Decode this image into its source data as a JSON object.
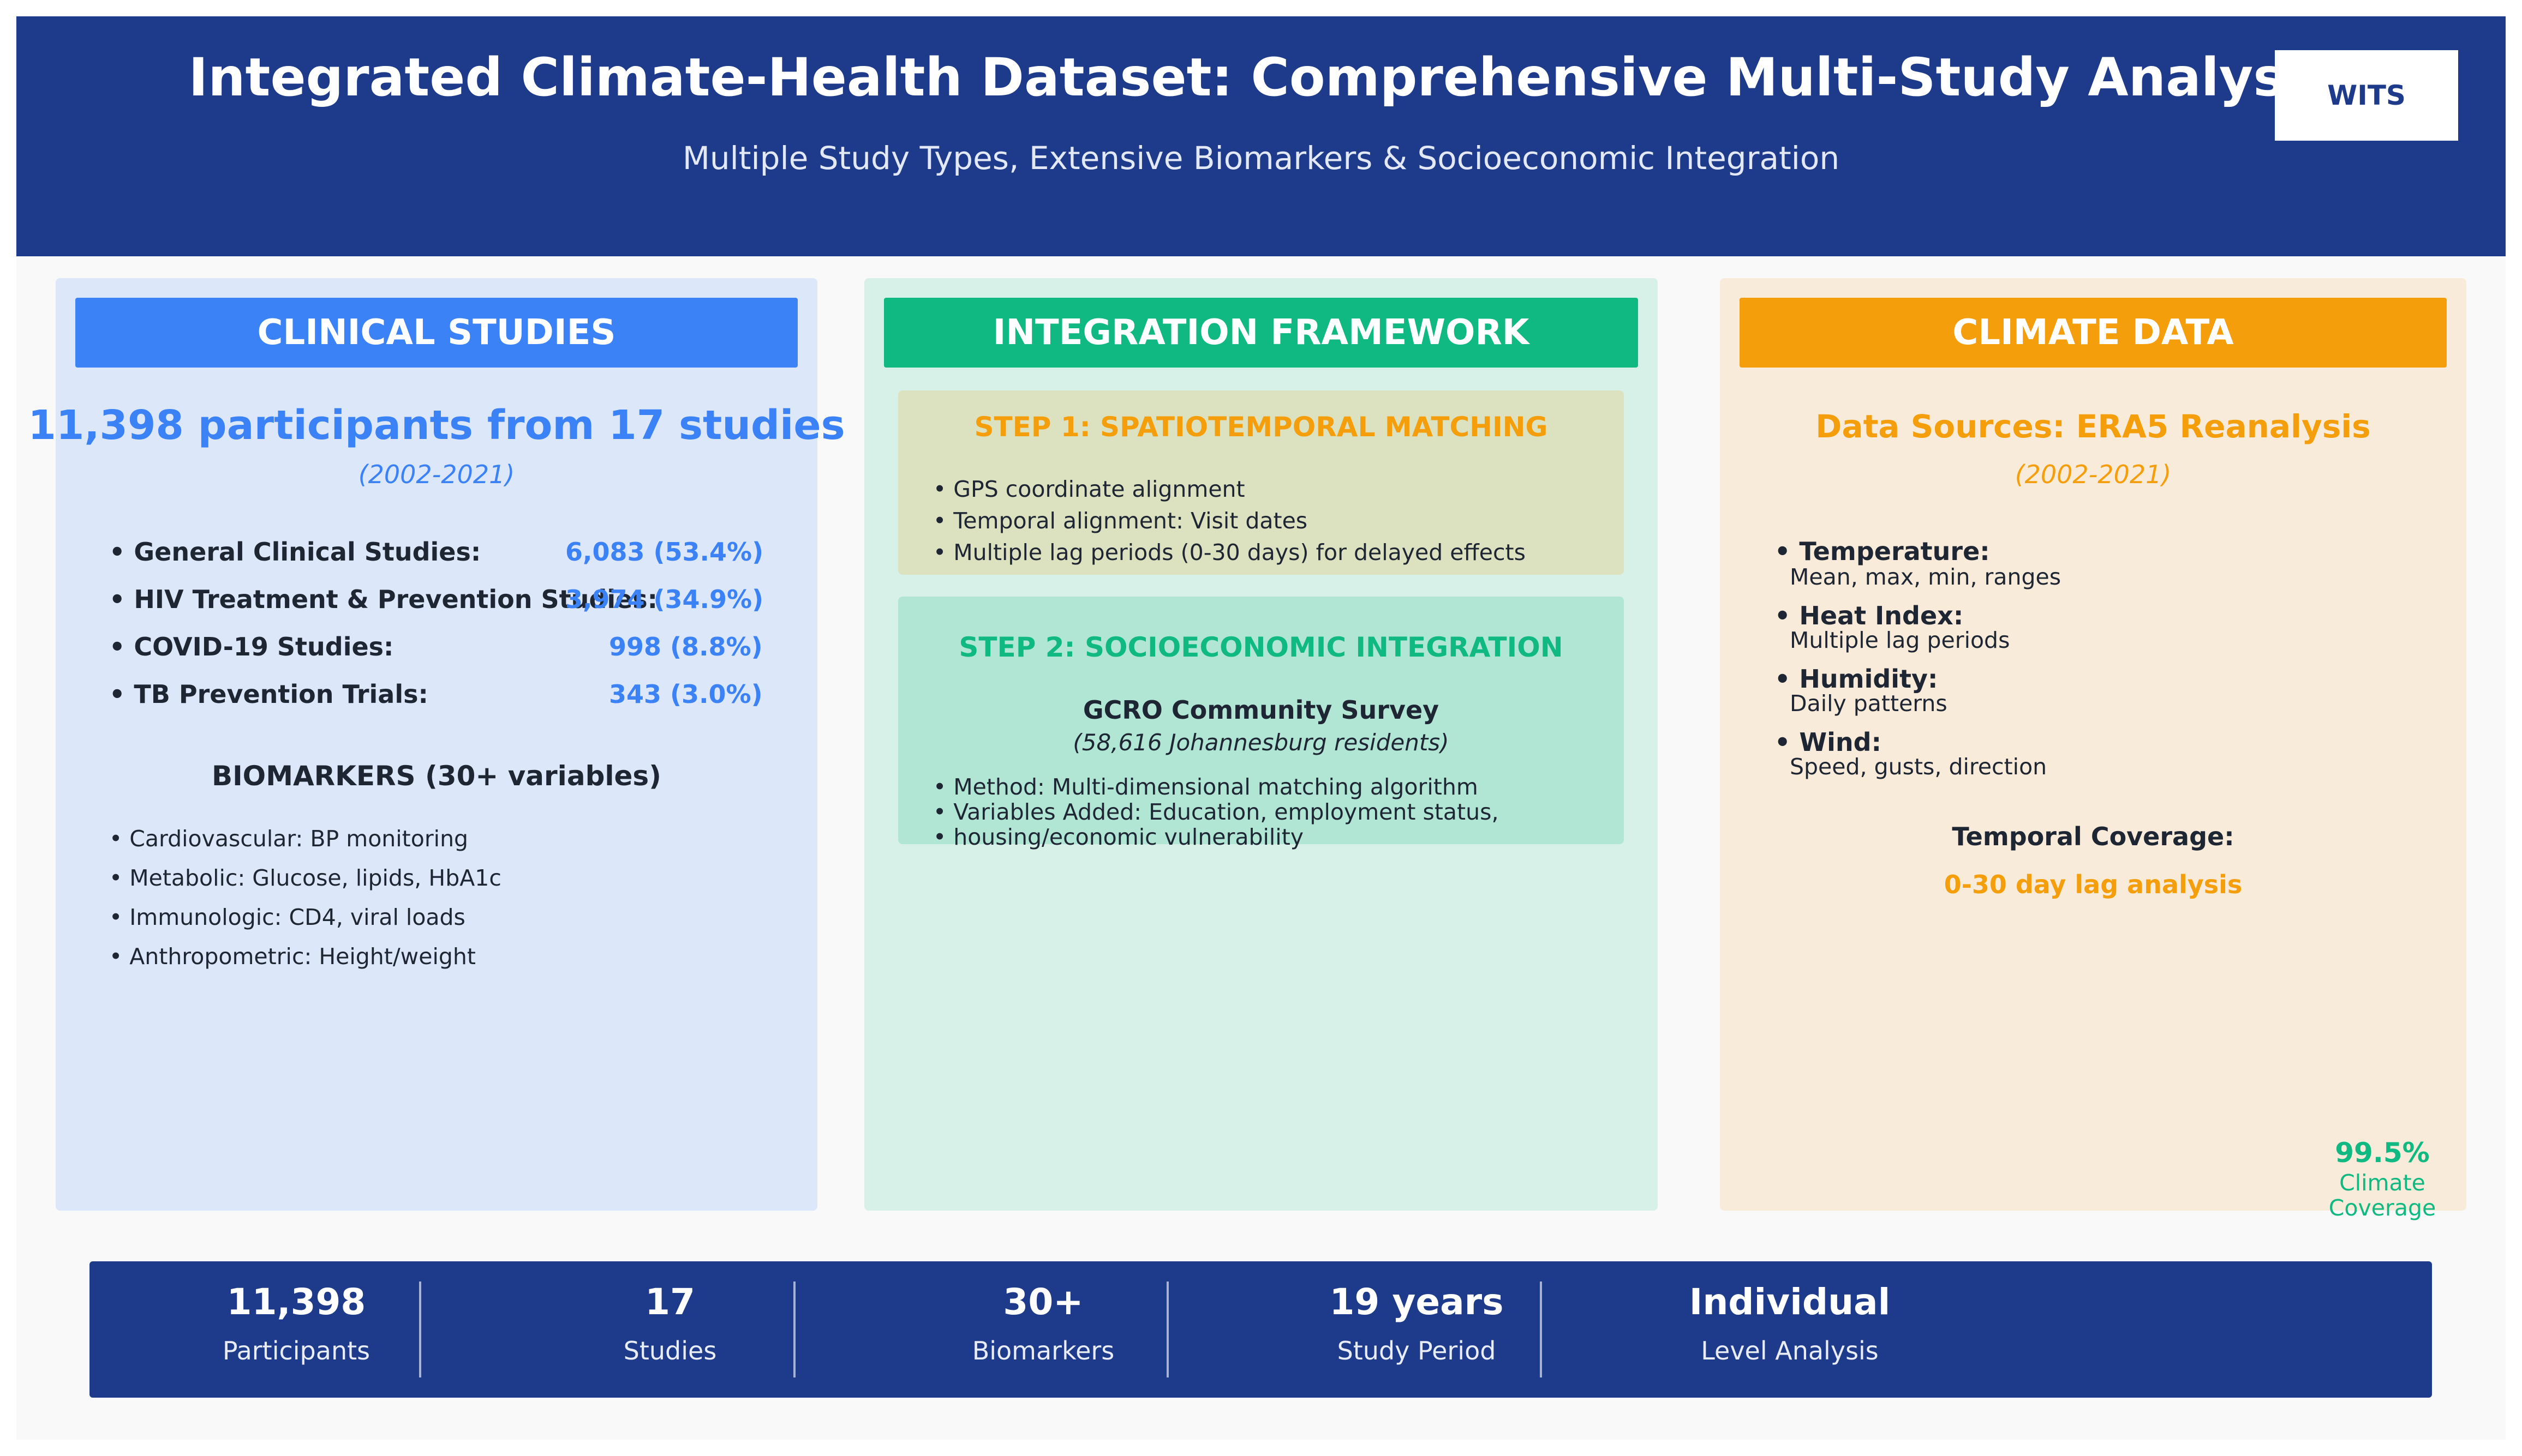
{
  "header": {
    "title": "Integrated Climate-Health Dataset: Comprehensive Multi-Study Analysis",
    "subtitle": "Multiple Study Types, Extensive Biomarkers & Socioeconomic Integration",
    "logo_text": "WITS"
  },
  "clinical": {
    "heading": "CLINICAL STUDIES",
    "participants": "11,398 participants from 17 studies",
    "period": "(2002-2021)",
    "studies": [
      {
        "label": "• General Clinical Studies:",
        "value": "6,083 (53.4%)"
      },
      {
        "label": "• HIV Treatment & Prevention Studies:",
        "value": "3,974 (34.9%)"
      },
      {
        "label": "• COVID-19 Studies:",
        "value": "998 (8.8%)"
      },
      {
        "label": "• TB Prevention Trials:",
        "value": "343 (3.0%)"
      }
    ],
    "biomarkers_heading": "BIOMARKERS (30+ variables)",
    "biomarkers": [
      "• Cardiovascular: BP monitoring",
      "• Metabolic: Glucose, lipids, HbA1c",
      "• Immunologic: CD4, viral loads",
      "• Anthropometric: Height/weight"
    ]
  },
  "integration": {
    "heading": "INTEGRATION FRAMEWORK",
    "step1": {
      "title": "STEP 1: SPATIOTEMPORAL MATCHING",
      "items": [
        "• GPS coordinate alignment",
        "• Temporal alignment: Visit dates",
        "• Multiple lag periods (0-30 days) for delayed effects"
      ]
    },
    "step2": {
      "title": "STEP 2: SOCIOECONOMIC INTEGRATION",
      "survey_title": "GCRO Community Survey",
      "survey_sub": "(58,616 Johannesburg residents)",
      "items": [
        "• Method: Multi-dimensional matching algorithm",
        "• Variables Added: Education, employment status,",
        "• housing/economic vulnerability"
      ]
    }
  },
  "climate": {
    "heading": "CLIMATE DATA",
    "source": "Data Sources: ERA5 Reanalysis",
    "period": "(2002-2021)",
    "variables": [
      {
        "name": "• Temperature:",
        "desc": "Mean, max, min, ranges"
      },
      {
        "name": "• Heat Index:",
        "desc": "Multiple lag periods"
      },
      {
        "name": "• Humidity:",
        "desc": "Daily patterns"
      },
      {
        "name": "• Wind:",
        "desc": "Speed, gusts, direction"
      }
    ],
    "temporal_heading": "Temporal Coverage:",
    "temporal_value": "0-30 day lag analysis",
    "coverage_value": "99.5%",
    "coverage_label_1": "Climate",
    "coverage_label_2": "Coverage"
  },
  "stats": [
    {
      "value": "11,398",
      "label": "Participants"
    },
    {
      "value": "17",
      "label": "Studies"
    },
    {
      "value": "30+",
      "label": "Biomarkers"
    },
    {
      "value": "19 years",
      "label": "Study Period"
    },
    {
      "value": "Individual",
      "label": "Level Analysis"
    }
  ],
  "colors": {
    "navy": "#1e3a8a",
    "blue": "#3b82f6",
    "green": "#10b981",
    "orange": "#f59e0b"
  }
}
